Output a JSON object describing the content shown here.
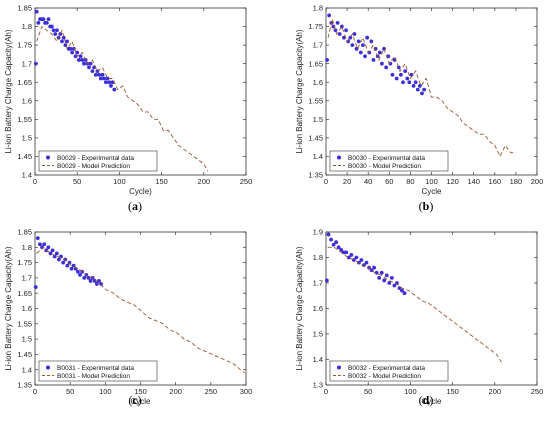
{
  "chart_data": [
    {
      "type": "scatter",
      "panel_label": "(a)",
      "xlabel": "Cycle)",
      "ylabel": "Li-ion Battery Charge Capacity(Ah)",
      "xlim": [
        0,
        250
      ],
      "ylim": [
        1.4,
        1.85
      ],
      "xticks": [
        "0",
        "50",
        "100",
        "150",
        "200",
        "250"
      ],
      "yticks": [
        "1.4",
        "1.45",
        "1.5",
        "1.55",
        "1.6",
        "1.65",
        "1.7",
        "1.75",
        "1.8",
        "1.85"
      ],
      "legend_position": "bottom-left",
      "series": [
        {
          "name": "B0029 - Experimental data",
          "style": "markers",
          "color": "#3b2fd9",
          "x": [
            1,
            2,
            4,
            6,
            8,
            10,
            12,
            14,
            16,
            18,
            20,
            22,
            24,
            26,
            28,
            30,
            32,
            34,
            36,
            38,
            40,
            42,
            44,
            46,
            48,
            50,
            52,
            54,
            56,
            58,
            60,
            62,
            64,
            66,
            68,
            70,
            72,
            74,
            76,
            78,
            80,
            82,
            84,
            86,
            88,
            90,
            92,
            94
          ],
          "y": [
            1.7,
            1.84,
            1.81,
            1.82,
            1.82,
            1.82,
            1.81,
            1.81,
            1.82,
            1.8,
            1.8,
            1.79,
            1.78,
            1.79,
            1.77,
            1.78,
            1.76,
            1.77,
            1.75,
            1.76,
            1.74,
            1.74,
            1.73,
            1.74,
            1.72,
            1.73,
            1.71,
            1.72,
            1.71,
            1.7,
            1.71,
            1.7,
            1.69,
            1.7,
            1.68,
            1.69,
            1.67,
            1.68,
            1.67,
            1.66,
            1.67,
            1.66,
            1.65,
            1.66,
            1.65,
            1.64,
            1.65,
            1.63
          ]
        },
        {
          "name": "B0029 - Model Prediction",
          "style": "dashed",
          "color": "#a0522d",
          "x": [
            2,
            8,
            14,
            20,
            26,
            32,
            38,
            44,
            50,
            56,
            62,
            68,
            74,
            80,
            86,
            92,
            98,
            104,
            110,
            116,
            122,
            128,
            134,
            140,
            146,
            152,
            158,
            164,
            170,
            176,
            182,
            188,
            194,
            200,
            205
          ],
          "y": [
            1.76,
            1.8,
            1.79,
            1.78,
            1.76,
            1.79,
            1.74,
            1.76,
            1.72,
            1.73,
            1.7,
            1.71,
            1.68,
            1.69,
            1.66,
            1.66,
            1.63,
            1.64,
            1.61,
            1.6,
            1.59,
            1.57,
            1.57,
            1.55,
            1.55,
            1.52,
            1.52,
            1.5,
            1.48,
            1.47,
            1.46,
            1.45,
            1.44,
            1.43,
            1.41
          ]
        }
      ]
    },
    {
      "type": "scatter",
      "panel_label": "(b)",
      "xlabel": "Cycle",
      "ylabel": "Li-ion Battery Charge Capacity(Ah)",
      "xlim": [
        0,
        200
      ],
      "ylim": [
        1.35,
        1.8
      ],
      "xticks": [
        "0",
        "20",
        "40",
        "60",
        "80",
        "100",
        "120",
        "140",
        "160",
        "180",
        "200"
      ],
      "yticks": [
        "1.35",
        "1.4",
        "1.45",
        "1.5",
        "1.55",
        "1.6",
        "1.65",
        "1.7",
        "1.75",
        "1.8"
      ],
      "legend_position": "bottom-left",
      "series": [
        {
          "name": "B0030 - Experimental data",
          "style": "markers",
          "color": "#3b2fd9",
          "x": [
            1,
            3,
            5,
            7,
            9,
            11,
            13,
            15,
            17,
            19,
            21,
            23,
            25,
            27,
            29,
            31,
            33,
            35,
            37,
            39,
            41,
            43,
            45,
            47,
            49,
            51,
            53,
            55,
            57,
            59,
            61,
            63,
            65,
            67,
            69,
            71,
            73,
            75,
            77,
            79,
            81,
            83,
            85,
            87,
            89,
            91,
            93
          ],
          "y": [
            1.66,
            1.78,
            1.76,
            1.75,
            1.74,
            1.76,
            1.73,
            1.75,
            1.72,
            1.74,
            1.71,
            1.72,
            1.7,
            1.73,
            1.69,
            1.71,
            1.68,
            1.7,
            1.67,
            1.72,
            1.68,
            1.71,
            1.66,
            1.69,
            1.67,
            1.68,
            1.65,
            1.69,
            1.64,
            1.67,
            1.65,
            1.62,
            1.66,
            1.61,
            1.64,
            1.62,
            1.6,
            1.63,
            1.61,
            1.6,
            1.62,
            1.59,
            1.6,
            1.58,
            1.59,
            1.57,
            1.58
          ]
        },
        {
          "name": "B0030 - Model Prediction",
          "style": "dashed",
          "color": "#a0522d",
          "x": [
            2,
            6,
            10,
            15,
            20,
            25,
            30,
            35,
            40,
            45,
            50,
            55,
            60,
            65,
            70,
            75,
            80,
            85,
            90,
            95,
            100,
            105,
            110,
            115,
            120,
            125,
            130,
            135,
            140,
            145,
            150,
            155,
            160,
            165,
            170,
            175,
            180
          ],
          "y": [
            1.72,
            1.77,
            1.73,
            1.75,
            1.71,
            1.73,
            1.69,
            1.72,
            1.68,
            1.7,
            1.66,
            1.69,
            1.65,
            1.67,
            1.63,
            1.65,
            1.61,
            1.63,
            1.59,
            1.61,
            1.56,
            1.56,
            1.55,
            1.53,
            1.52,
            1.51,
            1.49,
            1.48,
            1.47,
            1.46,
            1.46,
            1.44,
            1.43,
            1.4,
            1.43,
            1.41,
            1.41
          ]
        }
      ]
    },
    {
      "type": "scatter",
      "panel_label": "(c)",
      "xlabel": "Cycle",
      "ylabel": "Li-ion Battery Charge Capacity(Ah)",
      "xlim": [
        0,
        300
      ],
      "ylim": [
        1.35,
        1.85
      ],
      "xticks": [
        "0",
        "50",
        "100",
        "150",
        "200",
        "250",
        "300"
      ],
      "yticks": [
        "1.35",
        "1.4",
        "1.45",
        "1.5",
        "1.55",
        "1.6",
        "1.65",
        "1.7",
        "1.75",
        "1.8",
        "1.85"
      ],
      "legend_position": "bottom-left",
      "series": [
        {
          "name": "B0031 - Experimental data",
          "style": "markers",
          "color": "#3b2fd9",
          "x": [
            1,
            4,
            7,
            10,
            13,
            16,
            19,
            22,
            25,
            28,
            31,
            34,
            37,
            40,
            43,
            46,
            49,
            52,
            55,
            58,
            61,
            64,
            67,
            70,
            73,
            76,
            79,
            82,
            85,
            88,
            91,
            94
          ],
          "y": [
            1.67,
            1.83,
            1.81,
            1.8,
            1.81,
            1.79,
            1.8,
            1.78,
            1.79,
            1.77,
            1.78,
            1.76,
            1.77,
            1.75,
            1.76,
            1.74,
            1.75,
            1.73,
            1.74,
            1.73,
            1.72,
            1.71,
            1.72,
            1.7,
            1.71,
            1.7,
            1.69,
            1.7,
            1.69,
            1.68,
            1.69,
            1.68
          ]
        },
        {
          "name": "B0031 - Model Prediction",
          "style": "dashed",
          "color": "#a0522d",
          "x": [
            2,
            12,
            22,
            32,
            42,
            52,
            62,
            72,
            82,
            92,
            102,
            112,
            122,
            132,
            142,
            152,
            162,
            172,
            182,
            192,
            202,
            212,
            222,
            232,
            242,
            252,
            262,
            272,
            282,
            292,
            298
          ],
          "y": [
            1.78,
            1.8,
            1.78,
            1.77,
            1.76,
            1.74,
            1.73,
            1.71,
            1.7,
            1.68,
            1.66,
            1.65,
            1.63,
            1.62,
            1.61,
            1.59,
            1.57,
            1.56,
            1.55,
            1.53,
            1.52,
            1.5,
            1.49,
            1.47,
            1.46,
            1.45,
            1.44,
            1.43,
            1.42,
            1.4,
            1.39
          ]
        }
      ]
    },
    {
      "type": "scatter",
      "panel_label": "(d)",
      "xlabel": "Cycle",
      "ylabel": "Li-ion Battery Charge Capacity(Ah)",
      "xlim": [
        0,
        250
      ],
      "ylim": [
        1.3,
        1.9
      ],
      "xticks": [
        "0",
        "50",
        "100",
        "150",
        "200",
        "250"
      ],
      "yticks": [
        "1.3",
        "1.4",
        "1.5",
        "1.6",
        "1.7",
        "1.8",
        "1.9"
      ],
      "legend_position": "bottom-left",
      "series": [
        {
          "name": "B0032 - Experimental data",
          "style": "markers",
          "color": "#3b2fd9",
          "x": [
            1,
            3,
            6,
            9,
            12,
            15,
            18,
            21,
            24,
            27,
            30,
            33,
            36,
            39,
            42,
            45,
            48,
            51,
            54,
            57,
            60,
            63,
            66,
            69,
            72,
            75,
            78,
            81,
            84,
            87,
            90,
            93
          ],
          "y": [
            1.71,
            1.89,
            1.87,
            1.85,
            1.86,
            1.84,
            1.83,
            1.82,
            1.82,
            1.8,
            1.81,
            1.79,
            1.8,
            1.78,
            1.79,
            1.77,
            1.78,
            1.76,
            1.75,
            1.76,
            1.74,
            1.72,
            1.74,
            1.71,
            1.73,
            1.7,
            1.72,
            1.69,
            1.7,
            1.68,
            1.67,
            1.66
          ]
        },
        {
          "name": "B0032 - Model Prediction",
          "style": "dashed",
          "color": "#a0522d",
          "x": [
            2,
            10,
            18,
            26,
            34,
            42,
            50,
            58,
            66,
            74,
            82,
            90,
            98,
            106,
            114,
            122,
            130,
            138,
            146,
            154,
            162,
            170,
            178,
            186,
            194,
            202,
            208
          ],
          "y": [
            1.84,
            1.84,
            1.82,
            1.8,
            1.79,
            1.77,
            1.76,
            1.74,
            1.73,
            1.71,
            1.7,
            1.68,
            1.67,
            1.65,
            1.63,
            1.62,
            1.6,
            1.58,
            1.56,
            1.54,
            1.52,
            1.5,
            1.48,
            1.46,
            1.44,
            1.42,
            1.39
          ]
        }
      ]
    }
  ]
}
